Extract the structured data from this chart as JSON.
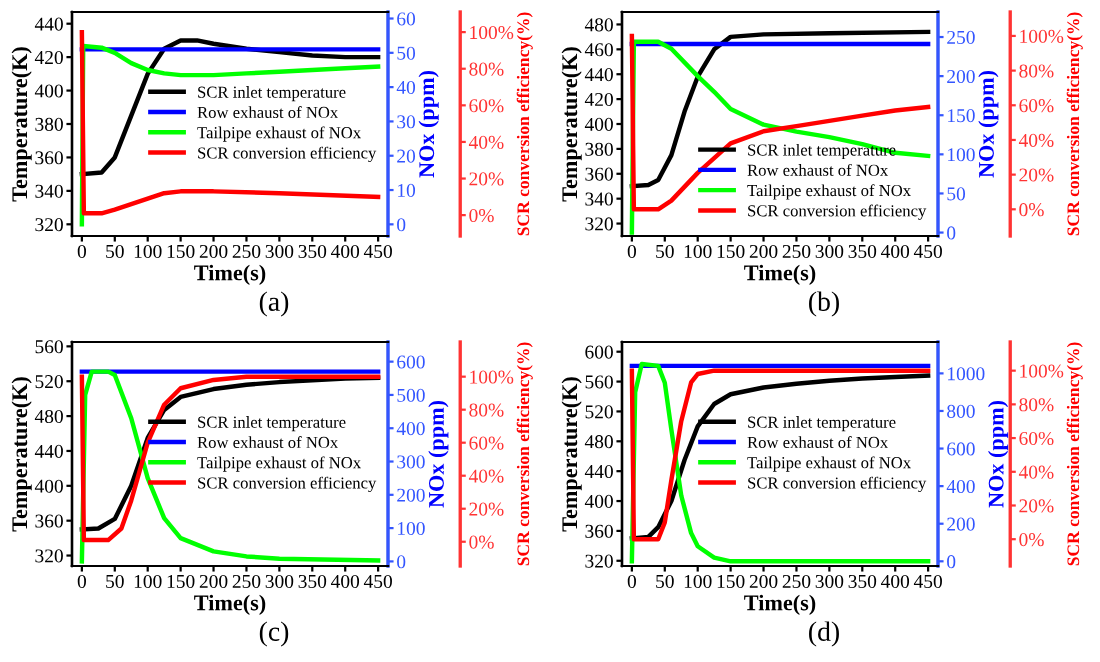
{
  "chart_data": [
    {
      "type": "line",
      "xlabel": "Time(s)",
      "ylabel": "Temperature(K)",
      "y2label": "NOx (ppm)",
      "y3label": "SCR conversion efficiency(%)",
      "annotations": [
        "(a)"
      ],
      "legend": "center right",
      "grid": false,
      "xlim": [
        -15,
        465
      ],
      "xticks": [
        0,
        50,
        100,
        150,
        200,
        250,
        300,
        350,
        400,
        450
      ],
      "ylim": [
        313,
        447
      ],
      "yticks": [
        320,
        340,
        360,
        380,
        400,
        420,
        440
      ],
      "y2lim": [
        -3.4,
        61.9
      ],
      "y2ticks": [
        0,
        10,
        20,
        30,
        40,
        50,
        60
      ],
      "y3lim": [
        -11.4,
        111
      ],
      "y3ticks": [
        {
          "value": 0,
          "label": "0%"
        },
        {
          "value": 20,
          "label": "20%"
        },
        {
          "value": 40,
          "label": "40%"
        },
        {
          "value": 60,
          "label": "60%"
        },
        {
          "value": 80,
          "label": "80%"
        },
        {
          "value": 100,
          "label": "100%"
        }
      ],
      "series": [
        {
          "name": "SCR inlet temperature",
          "color": "#000000",
          "axis": "y",
          "x": [
            0,
            30,
            50,
            75,
            100,
            125,
            150,
            175,
            200,
            250,
            300,
            350,
            400,
            450
          ],
          "values": [
            350,
            351,
            360,
            385,
            410,
            425,
            430,
            430,
            428,
            425,
            423,
            421,
            420,
            420
          ]
        },
        {
          "name": "Row exhaust of NOx",
          "color": "#0000ff",
          "axis": "y2",
          "x": [
            0,
            450
          ],
          "values": [
            51,
            51
          ]
        },
        {
          "name": "Tailpipe exhaust of NOx",
          "color": "#00ff00",
          "axis": "y2",
          "x": [
            0,
            2,
            30,
            50,
            75,
            100,
            125,
            150,
            200,
            250,
            300,
            350,
            400,
            450
          ],
          "values": [
            0,
            52,
            51.5,
            50,
            47,
            45,
            44,
            43.5,
            43.5,
            44,
            44.5,
            45,
            45.5,
            46
          ]
        },
        {
          "name": "SCR conversion efficiency",
          "color": "#ff0000",
          "axis": "y3",
          "x": [
            0,
            3,
            30,
            50,
            75,
            100,
            125,
            150,
            200,
            300,
            450
          ],
          "values": [
            100,
            1,
            1,
            3,
            6,
            9,
            12,
            13,
            13,
            12,
            10
          ]
        }
      ]
    },
    {
      "type": "line",
      "xlabel": "Time(s)",
      "ylabel": "Temperature(K)",
      "y2label": "NOx (ppm)",
      "y3label": "SCR conversion efficiency(%)",
      "annotations": [
        "(b)"
      ],
      "legend": "lower right",
      "grid": false,
      "xlim": [
        -15,
        465
      ],
      "xticks": [
        0,
        50,
        100,
        150,
        200,
        250,
        300,
        350,
        400,
        450
      ],
      "ylim": [
        310,
        490
      ],
      "yticks": [
        320,
        340,
        360,
        380,
        400,
        420,
        440,
        460,
        480
      ],
      "y2lim": [
        -4.4,
        282
      ],
      "y2ticks": [
        0,
        50,
        100,
        150,
        200,
        250
      ],
      "y3lim": [
        -15.4,
        113.8
      ],
      "y3ticks": [
        {
          "value": 0,
          "label": "0%"
        },
        {
          "value": 20,
          "label": "20%"
        },
        {
          "value": 40,
          "label": "40%"
        },
        {
          "value": 60,
          "label": "60%"
        },
        {
          "value": 80,
          "label": "80%"
        },
        {
          "value": 100,
          "label": "100%"
        }
      ],
      "series": [
        {
          "name": "SCR inlet temperature",
          "color": "#000000",
          "axis": "y",
          "x": [
            0,
            25,
            40,
            60,
            80,
            100,
            125,
            150,
            200,
            300,
            450
          ],
          "values": [
            350,
            351,
            355,
            375,
            410,
            438,
            460,
            470,
            472,
            473,
            474
          ]
        },
        {
          "name": "Row exhaust of NOx",
          "color": "#0000ff",
          "axis": "y2",
          "x": [
            0,
            450
          ],
          "values": [
            241,
            241
          ]
        },
        {
          "name": "Tailpipe exhaust of NOx",
          "color": "#00ff00",
          "axis": "y2",
          "x": [
            0,
            3,
            40,
            60,
            100,
            125,
            150,
            200,
            250,
            300,
            350,
            400,
            450
          ],
          "values": [
            0,
            244,
            244,
            235,
            200,
            180,
            158,
            138,
            129,
            122,
            113,
            102,
            98
          ]
        },
        {
          "name": "SCR conversion efficiency",
          "color": "#ff0000",
          "axis": "y3",
          "x": [
            0,
            3,
            40,
            60,
            100,
            150,
            200,
            250,
            300,
            350,
            400,
            450
          ],
          "values": [
            100,
            0,
            0,
            5,
            21,
            38,
            45,
            48,
            51,
            54,
            57,
            59
          ]
        }
      ]
    },
    {
      "type": "line",
      "xlabel": "Time(s)",
      "ylabel": "Temperature(K)",
      "y2label": "NOx (ppm)",
      "y3label": "SCR conversion efficiency(%)",
      "annotations": [
        "(c)"
      ],
      "legend": "center right",
      "grid": false,
      "xlim": [
        -15,
        465
      ],
      "xticks": [
        0,
        50,
        100,
        150,
        200,
        250,
        300,
        350,
        400,
        450
      ],
      "ylim": [
        308,
        565
      ],
      "yticks": [
        320,
        360,
        400,
        440,
        480,
        520,
        560
      ],
      "y2lim": [
        -13.8,
        659
      ],
      "y2ticks": [
        0,
        100,
        200,
        300,
        400,
        500,
        600
      ],
      "y3lim": [
        -14.7,
        121
      ],
      "y3ticks": [
        {
          "value": 0,
          "label": "0%"
        },
        {
          "value": 20,
          "label": "20%"
        },
        {
          "value": 40,
          "label": "40%"
        },
        {
          "value": 60,
          "label": "60%"
        },
        {
          "value": 80,
          "label": "80%"
        },
        {
          "value": 100,
          "label": "100%"
        }
      ],
      "series": [
        {
          "name": "SCR inlet temperature",
          "color": "#000000",
          "axis": "y",
          "x": [
            0,
            25,
            50,
            75,
            100,
            125,
            150,
            200,
            250,
            300,
            350,
            400,
            450
          ],
          "values": [
            350,
            351,
            362,
            400,
            455,
            487,
            502,
            511,
            516,
            519,
            521,
            523,
            524
          ]
        },
        {
          "name": "Row exhaust of NOx",
          "color": "#0000ff",
          "axis": "y2",
          "x": [
            0,
            450
          ],
          "values": [
            570,
            570
          ]
        },
        {
          "name": "Tailpipe exhaust of NOx",
          "color": "#00ff00",
          "axis": "y2",
          "x": [
            0,
            5,
            15,
            40,
            50,
            75,
            100,
            125,
            150,
            200,
            250,
            300,
            450
          ],
          "values": [
            0,
            500,
            570,
            570,
            560,
            430,
            250,
            130,
            70,
            30,
            15,
            8,
            3
          ]
        },
        {
          "name": "SCR conversion efficiency",
          "color": "#ff0000",
          "axis": "y3",
          "x": [
            0,
            3,
            40,
            60,
            75,
            100,
            125,
            150,
            200,
            250,
            450
          ],
          "values": [
            100,
            1,
            1,
            8,
            25,
            60,
            83,
            93,
            98,
            100,
            100
          ]
        }
      ]
    },
    {
      "type": "line",
      "xlabel": "Time(s)",
      "ylabel": "Temperature(K)",
      "y2label": "NOx (ppm)",
      "y3label": "SCR conversion efficiency(%)",
      "annotations": [
        "(d)"
      ],
      "legend": "center right",
      "grid": false,
      "xlim": [
        -15,
        465
      ],
      "xticks": [
        0,
        50,
        100,
        150,
        200,
        250,
        300,
        350,
        400,
        450
      ],
      "ylim": [
        313,
        613
      ],
      "yticks": [
        320,
        360,
        400,
        440,
        480,
        520,
        560,
        600
      ],
      "y2lim": [
        -25,
        1167
      ],
      "y2ticks": [
        0,
        200,
        400,
        600,
        800,
        1000
      ],
      "y3lim": [
        -15.9,
        117
      ],
      "y3ticks": [
        {
          "value": 0,
          "label": "0%"
        },
        {
          "value": 20,
          "label": "20%"
        },
        {
          "value": 40,
          "label": "40%"
        },
        {
          "value": 60,
          "label": "60%"
        },
        {
          "value": 80,
          "label": "80%"
        },
        {
          "value": 100,
          "label": "100%"
        }
      ],
      "series": [
        {
          "name": "SCR inlet temperature",
          "color": "#000000",
          "axis": "y",
          "x": [
            0,
            25,
            40,
            60,
            80,
            100,
            125,
            150,
            200,
            250,
            300,
            350,
            400,
            450
          ],
          "values": [
            350,
            352,
            365,
            400,
            455,
            500,
            530,
            543,
            552,
            557,
            561,
            564,
            566,
            568
          ]
        },
        {
          "name": "Row exhaust of NOx",
          "color": "#0000ff",
          "axis": "y2",
          "x": [
            0,
            450
          ],
          "values": [
            1040,
            1040
          ]
        },
        {
          "name": "Tailpipe exhaust of NOx",
          "color": "#00ff00",
          "axis": "y2",
          "x": [
            0,
            5,
            15,
            40,
            50,
            60,
            75,
            90,
            100,
            125,
            150,
            200,
            450
          ],
          "values": [
            0,
            900,
            1050,
            1040,
            950,
            700,
            350,
            150,
            80,
            20,
            0,
            0,
            0
          ]
        },
        {
          "name": "SCR conversion efficiency",
          "color": "#ff0000",
          "axis": "y3",
          "x": [
            0,
            3,
            40,
            50,
            60,
            75,
            90,
            100,
            125,
            450
          ],
          "values": [
            100,
            0,
            0,
            10,
            35,
            70,
            93,
            98,
            100,
            100
          ]
        }
      ]
    }
  ]
}
